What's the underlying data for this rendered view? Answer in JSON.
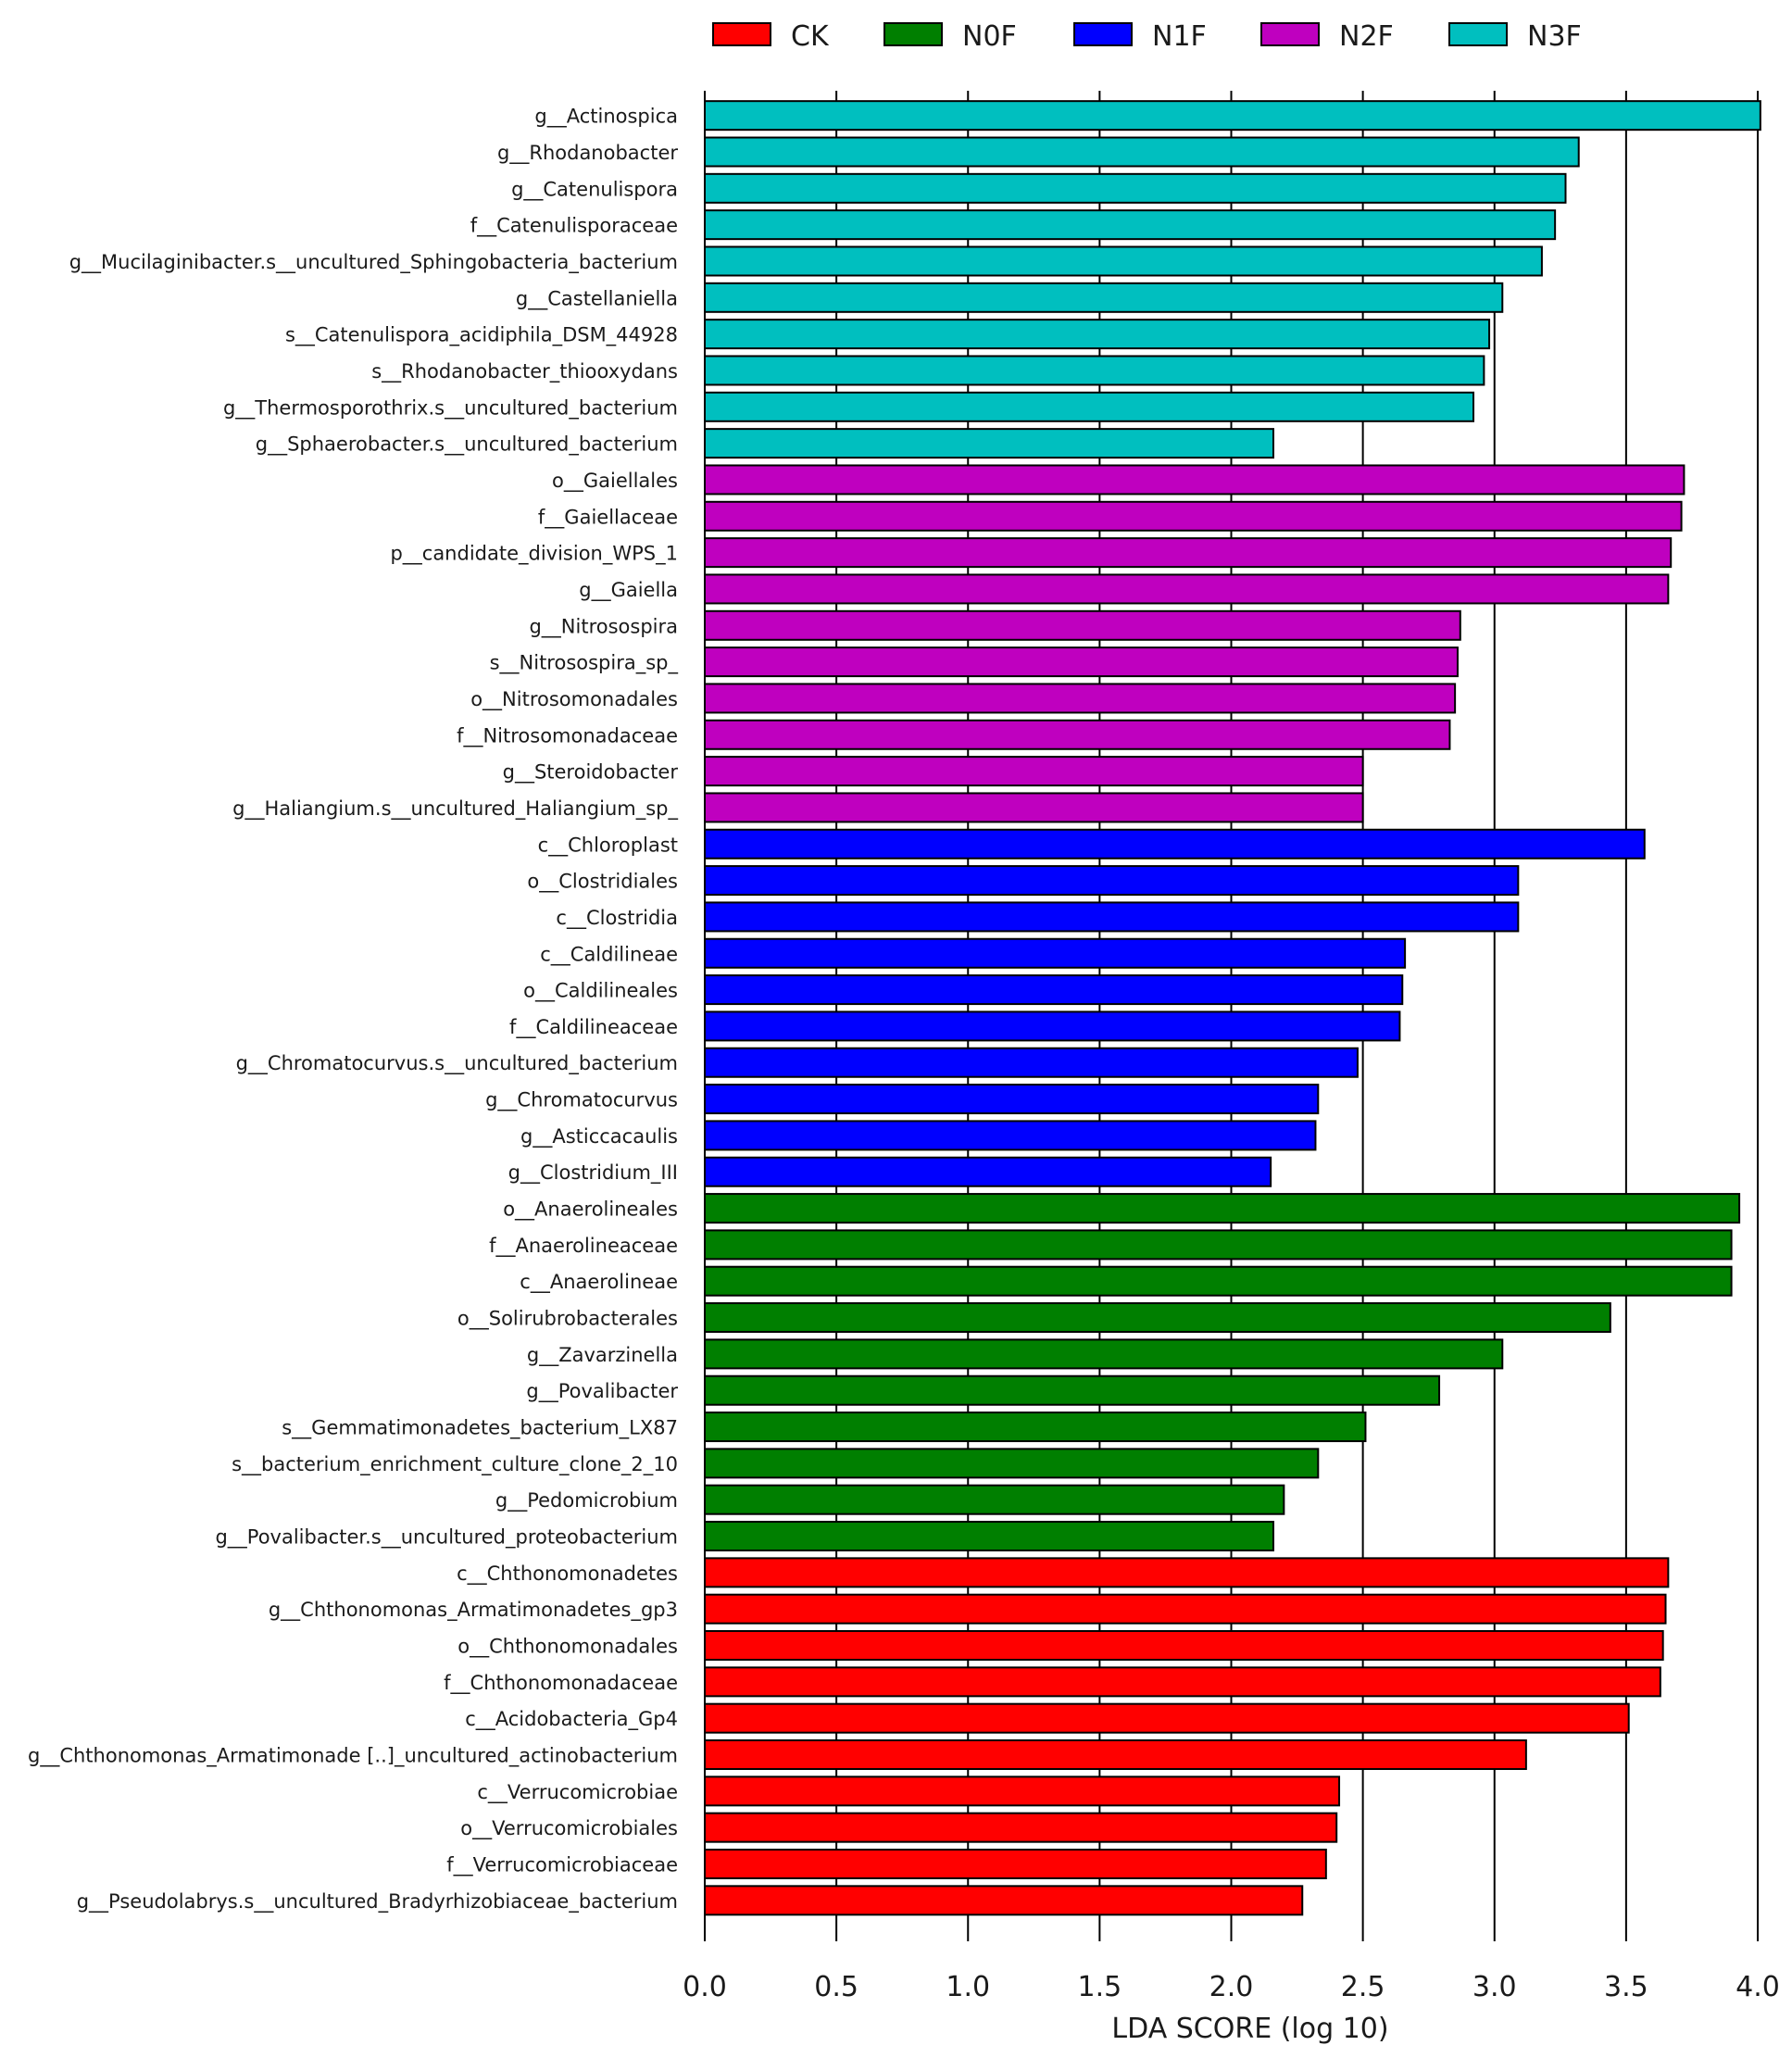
{
  "chart_data": {
    "type": "bar",
    "orientation": "horizontal",
    "title": "",
    "xlabel": "LDA SCORE (log 10)",
    "ylabel": "",
    "xlim": [
      0.0,
      4.0
    ],
    "xticks": [
      "0.0",
      "0.5",
      "1.0",
      "1.5",
      "2.0",
      "2.5",
      "3.0",
      "3.5",
      "4.0"
    ],
    "grid": "vertical lines at ticks",
    "legend_position": "top",
    "legend": [
      {
        "name": "CK",
        "color": "#ff0000"
      },
      {
        "name": "N0F",
        "color": "#007f00"
      },
      {
        "name": "N1F",
        "color": "#0000ff"
      },
      {
        "name": "N2F",
        "color": "#bf00bf"
      },
      {
        "name": "N3F",
        "color": "#00bfbf"
      }
    ],
    "bars": [
      {
        "label": "g__Actinospica",
        "value": 4.01,
        "group": "N3F"
      },
      {
        "label": "g__Rhodanobacter",
        "value": 3.32,
        "group": "N3F"
      },
      {
        "label": "g__Catenulispora",
        "value": 3.27,
        "group": "N3F"
      },
      {
        "label": "f__Catenulisporaceae",
        "value": 3.23,
        "group": "N3F"
      },
      {
        "label": "g__Mucilaginibacter.s__uncultured_Sphingobacteria_bacterium",
        "value": 3.18,
        "group": "N3F"
      },
      {
        "label": "g__Castellaniella",
        "value": 3.03,
        "group": "N3F"
      },
      {
        "label": "s__Catenulispora_acidiphila_DSM_44928",
        "value": 2.98,
        "group": "N3F"
      },
      {
        "label": "s__Rhodanobacter_thiooxydans",
        "value": 2.96,
        "group": "N3F"
      },
      {
        "label": "g__Thermosporothrix.s__uncultured_bacterium",
        "value": 2.92,
        "group": "N3F"
      },
      {
        "label": "g__Sphaerobacter.s__uncultured_bacterium",
        "value": 2.16,
        "group": "N3F"
      },
      {
        "label": "o__Gaiellales",
        "value": 3.72,
        "group": "N2F"
      },
      {
        "label": "f__Gaiellaceae",
        "value": 3.71,
        "group": "N2F"
      },
      {
        "label": "p__candidate_division_WPS_1",
        "value": 3.67,
        "group": "N2F"
      },
      {
        "label": "g__Gaiella",
        "value": 3.66,
        "group": "N2F"
      },
      {
        "label": "g__Nitrosospira",
        "value": 2.87,
        "group": "N2F"
      },
      {
        "label": "s__Nitrosospira_sp_",
        "value": 2.86,
        "group": "N2F"
      },
      {
        "label": "o__Nitrosomonadales",
        "value": 2.85,
        "group": "N2F"
      },
      {
        "label": "f__Nitrosomonadaceae",
        "value": 2.83,
        "group": "N2F"
      },
      {
        "label": "g__Steroidobacter",
        "value": 2.5,
        "group": "N2F"
      },
      {
        "label": "g__Haliangium.s__uncultured_Haliangium_sp_",
        "value": 2.5,
        "group": "N2F"
      },
      {
        "label": "c__Chloroplast",
        "value": 3.57,
        "group": "N1F"
      },
      {
        "label": "o__Clostridiales",
        "value": 3.09,
        "group": "N1F"
      },
      {
        "label": "c__Clostridia",
        "value": 3.09,
        "group": "N1F"
      },
      {
        "label": "c__Caldilineae",
        "value": 2.66,
        "group": "N1F"
      },
      {
        "label": "o__Caldilineales",
        "value": 2.65,
        "group": "N1F"
      },
      {
        "label": "f__Caldilineaceae",
        "value": 2.64,
        "group": "N1F"
      },
      {
        "label": "g__Chromatocurvus.s__uncultured_bacterium",
        "value": 2.48,
        "group": "N1F"
      },
      {
        "label": "g__Chromatocurvus",
        "value": 2.33,
        "group": "N1F"
      },
      {
        "label": "g__Asticcacaulis",
        "value": 2.32,
        "group": "N1F"
      },
      {
        "label": "g__Clostridium_III",
        "value": 2.15,
        "group": "N1F"
      },
      {
        "label": "o__Anaerolineales",
        "value": 3.93,
        "group": "N0F"
      },
      {
        "label": "f__Anaerolineaceae",
        "value": 3.9,
        "group": "N0F"
      },
      {
        "label": "c__Anaerolineae",
        "value": 3.9,
        "group": "N0F"
      },
      {
        "label": "o__Solirubrobacterales",
        "value": 3.44,
        "group": "N0F"
      },
      {
        "label": "g__Zavarzinella",
        "value": 3.03,
        "group": "N0F"
      },
      {
        "label": "g__Povalibacter",
        "value": 2.79,
        "group": "N0F"
      },
      {
        "label": "s__Gemmatimonadetes_bacterium_LX87",
        "value": 2.51,
        "group": "N0F"
      },
      {
        "label": "s__bacterium_enrichment_culture_clone_2_10",
        "value": 2.33,
        "group": "N0F"
      },
      {
        "label": "g__Pedomicrobium",
        "value": 2.2,
        "group": "N0F"
      },
      {
        "label": "g__Povalibacter.s__uncultured_proteobacterium",
        "value": 2.16,
        "group": "N0F"
      },
      {
        "label": "c__Chthonomonadetes",
        "value": 3.66,
        "group": "CK"
      },
      {
        "label": "g__Chthonomonas_Armatimonadetes_gp3",
        "value": 3.65,
        "group": "CK"
      },
      {
        "label": "o__Chthonomonadales",
        "value": 3.64,
        "group": "CK"
      },
      {
        "label": "f__Chthonomonadaceae",
        "value": 3.63,
        "group": "CK"
      },
      {
        "label": "c__Acidobacteria_Gp4",
        "value": 3.51,
        "group": "CK"
      },
      {
        "label": "g__Chthonomonas_Armatimonade [..]_uncultured_actinobacterium",
        "value": 3.12,
        "group": "CK"
      },
      {
        "label": "c__Verrucomicrobiae",
        "value": 2.41,
        "group": "CK"
      },
      {
        "label": "o__Verrucomicrobiales",
        "value": 2.4,
        "group": "CK"
      },
      {
        "label": "f__Verrucomicrobiaceae",
        "value": 2.36,
        "group": "CK"
      },
      {
        "label": "g__Pseudolabrys.s__uncultured_Bradyrhizobiaceae_bacterium",
        "value": 2.27,
        "group": "CK"
      }
    ]
  }
}
